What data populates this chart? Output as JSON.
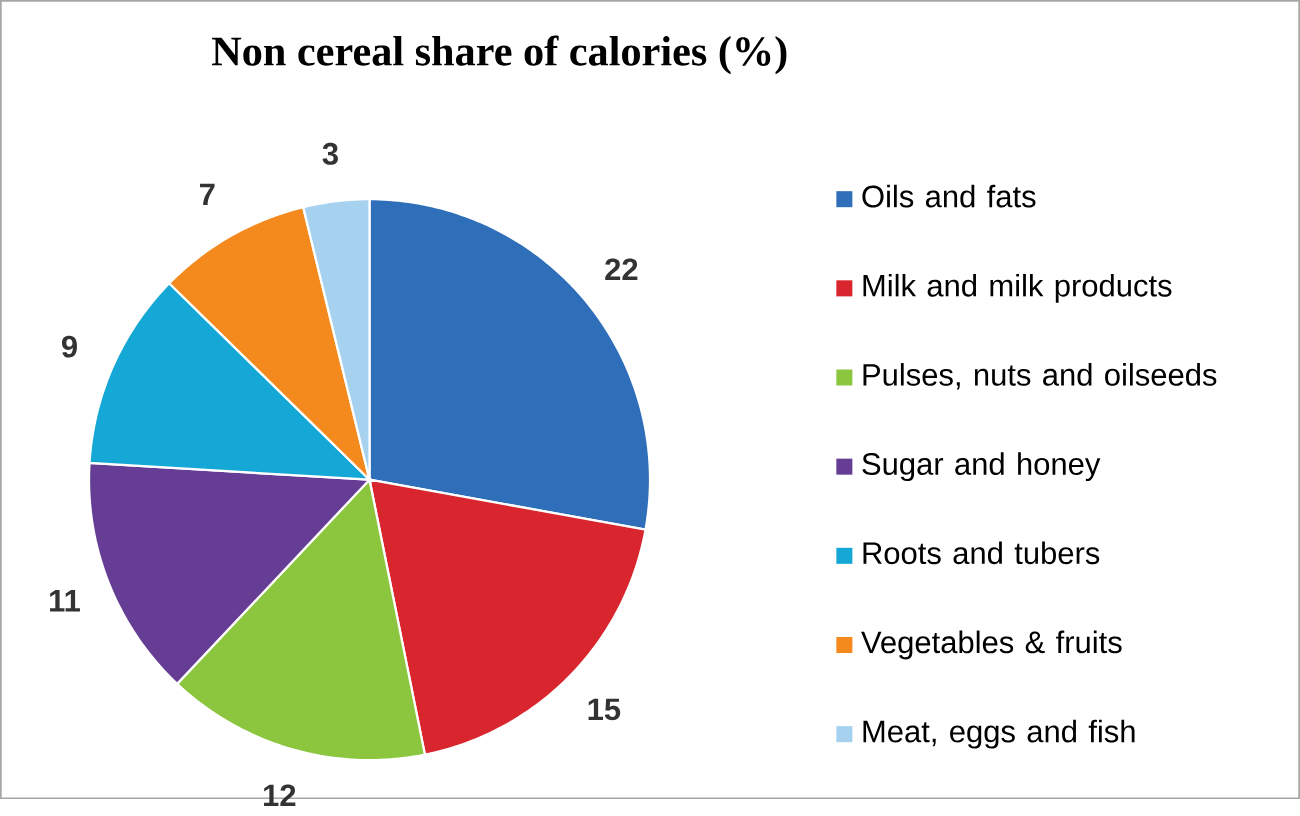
{
  "chart_data": {
    "type": "pie",
    "title": "Non cereal share of calories (%)",
    "categories": [
      "Oils and fats",
      "Milk and milk products",
      "Pulses, nuts and oilseeds",
      "Sugar and honey",
      "Roots and tubers",
      "Vegetables & fruits",
      "Meat, eggs and fish"
    ],
    "values": [
      22,
      15,
      12,
      11,
      9,
      7,
      3
    ],
    "colors": [
      "#2f6fba",
      "#d9262e",
      "#8cc63f",
      "#663d95",
      "#15a8d6",
      "#f48a1e",
      "#a6d2f0"
    ],
    "data_labels": true,
    "legend": "right"
  }
}
